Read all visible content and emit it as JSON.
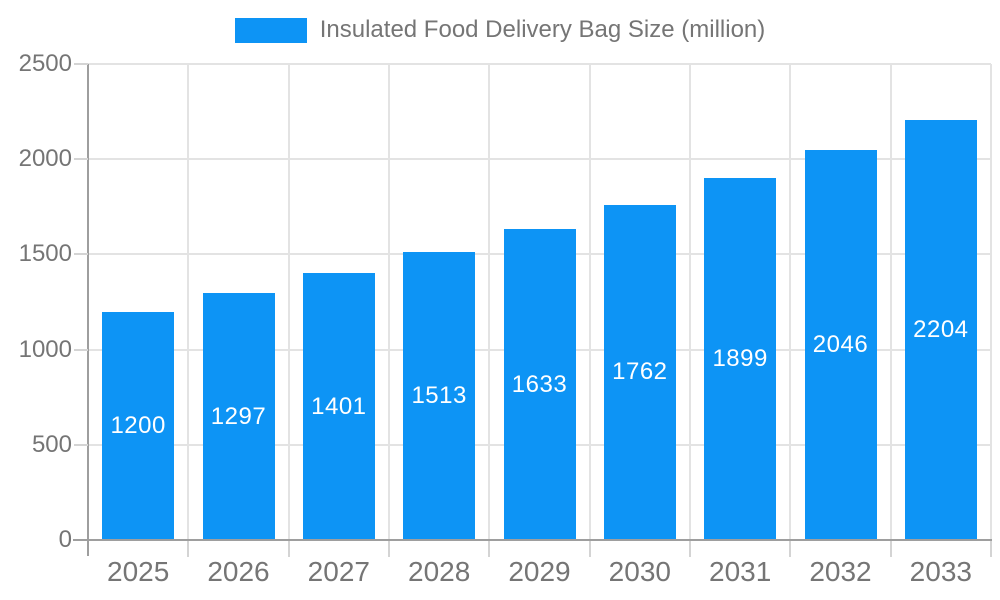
{
  "chart_data": {
    "type": "bar",
    "title": "Insulated Food Delivery Bag Size (million)",
    "categories": [
      "2025",
      "2026",
      "2027",
      "2028",
      "2029",
      "2030",
      "2031",
      "2032",
      "2033"
    ],
    "values": [
      1200,
      1297,
      1401,
      1513,
      1633,
      1762,
      1899,
      2046,
      2204
    ],
    "xlabel": "",
    "ylabel": "",
    "ylim": [
      0,
      2500
    ],
    "yticks": [
      0,
      500,
      1000,
      1500,
      2000,
      2500
    ],
    "grid": true,
    "legend_position": "top",
    "bar_color": "#0d94f5",
    "value_label_color": "#ffffff",
    "axis_text_color": "#757575"
  }
}
